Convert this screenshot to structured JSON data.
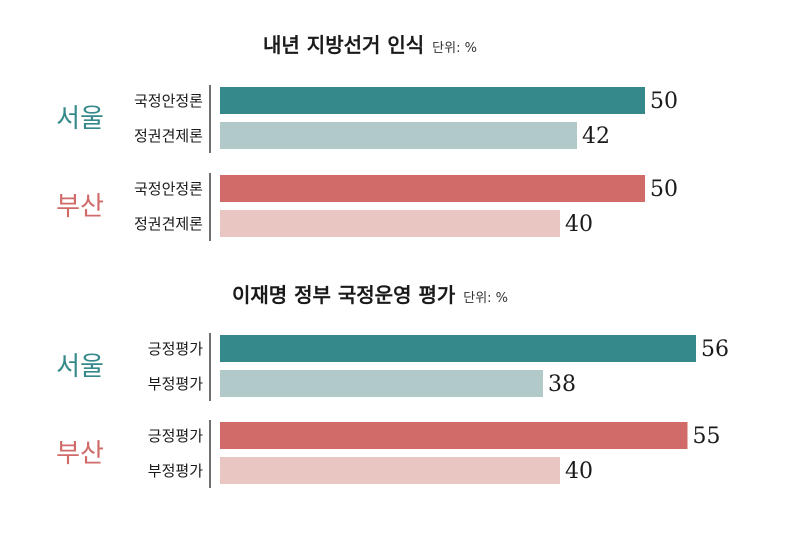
{
  "chart_data": [
    {
      "type": "bar",
      "title": "내년 지방선거 인식",
      "unit_note": "단위: %",
      "xlim": [
        0,
        100
      ],
      "groups": [
        {
          "region": "서울",
          "color_strong": "#35898a",
          "color_light": "#b1c9c9",
          "bars": [
            {
              "label": "국정안정론",
              "value": 50
            },
            {
              "label": "정권견제론",
              "value": 42
            }
          ]
        },
        {
          "region": "부산",
          "color_strong": "#d06b69",
          "color_light": "#e9c6c1",
          "bars": [
            {
              "label": "국정안정론",
              "value": 50
            },
            {
              "label": "정권견제론",
              "value": 40
            }
          ]
        }
      ]
    },
    {
      "type": "bar",
      "title": "이재명 정부 국정운영 평가",
      "unit_note": "단위: %",
      "xlim": [
        0,
        100
      ],
      "groups": [
        {
          "region": "서울",
          "color_strong": "#35898a",
          "color_light": "#b1c9c9",
          "bars": [
            {
              "label": "긍정평가",
              "value": 56
            },
            {
              "label": "부정평가",
              "value": 38
            }
          ]
        },
        {
          "region": "부산",
          "color_strong": "#d06b69",
          "color_light": "#e9c6c1",
          "bars": [
            {
              "label": "긍정평가",
              "value": 55
            },
            {
              "label": "부정평가",
              "value": 40
            }
          ]
        }
      ]
    }
  ]
}
